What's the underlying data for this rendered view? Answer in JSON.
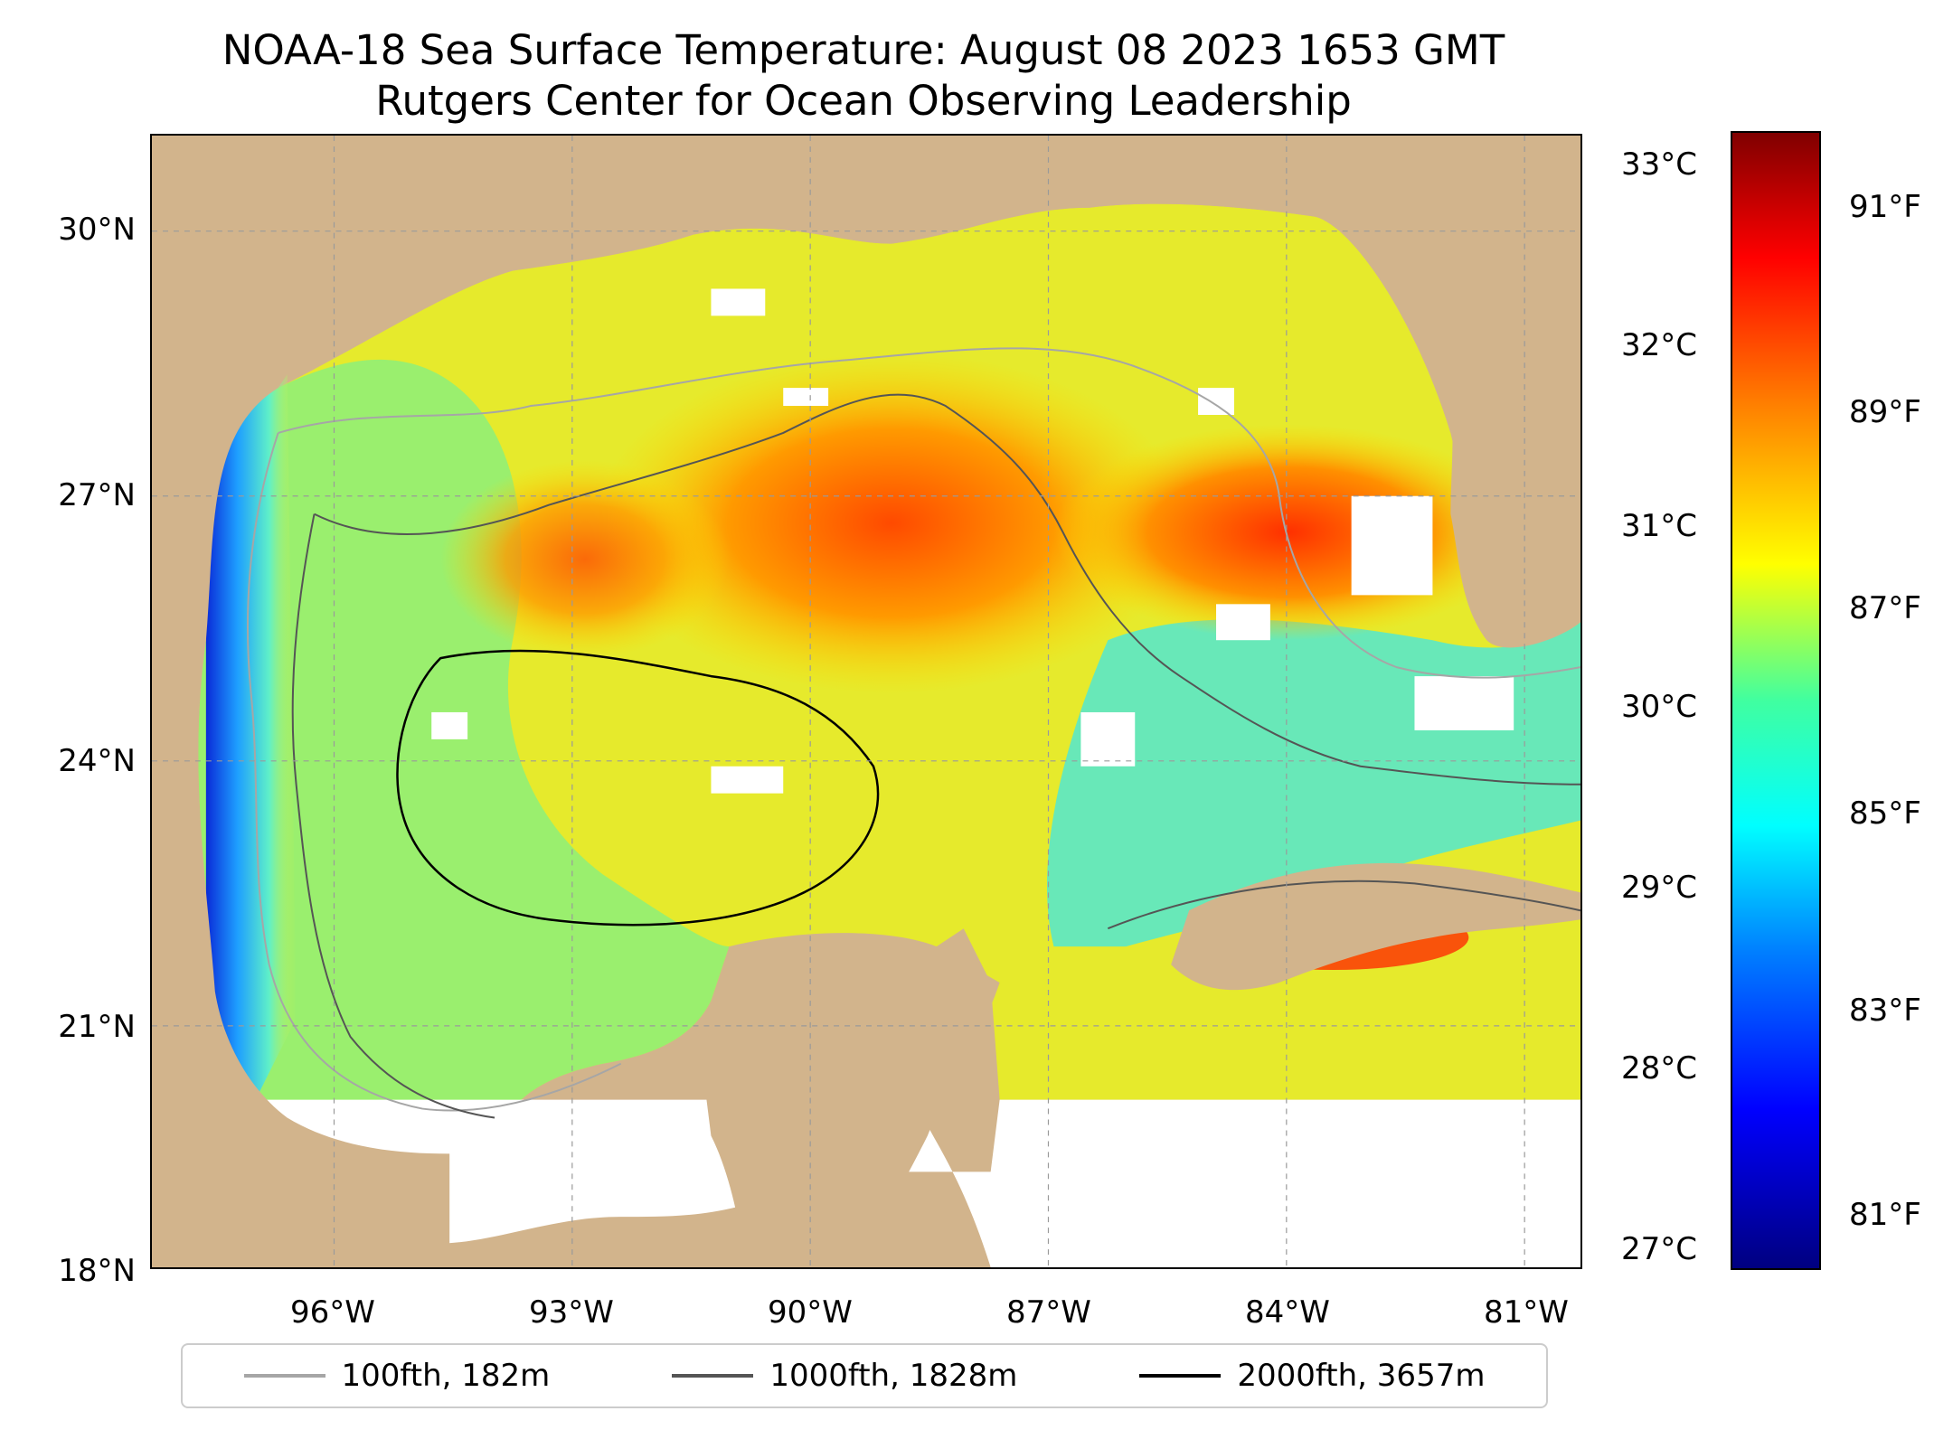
{
  "title": {
    "line1": "NOAA-18 Sea Surface Temperature: August 08 2023 1653 GMT",
    "line2": "Rutgers Center for Ocean Observing Leadership"
  },
  "axes": {
    "lat_labels": [
      "30°N",
      "27°N",
      "24°N",
      "21°N",
      "18°N"
    ],
    "lon_labels": [
      "96°W",
      "93°W",
      "90°W",
      "87°W",
      "84°W",
      "81°W"
    ]
  },
  "colorbar": {
    "celsius_labels": [
      "33°C",
      "32°C",
      "31°C",
      "30°C",
      "29°C",
      "28°C",
      "27°C"
    ],
    "fahrenheit_labels": [
      "91°F",
      "89°F",
      "87°F",
      "85°F",
      "83°F",
      "81°F"
    ]
  },
  "legend": {
    "items": [
      {
        "label": "100fth, 182m",
        "color": "#a6a6a6"
      },
      {
        "label": "1000fth, 1828m",
        "color": "#555555"
      },
      {
        "label": "2000fth, 3657m",
        "color": "#000000"
      }
    ]
  },
  "colors": {
    "land": "#d2b48c",
    "gulf_sst_dominant": "#f0e020",
    "warm_core": "#ff6a00",
    "cool_coast": "#1e6fff"
  }
}
